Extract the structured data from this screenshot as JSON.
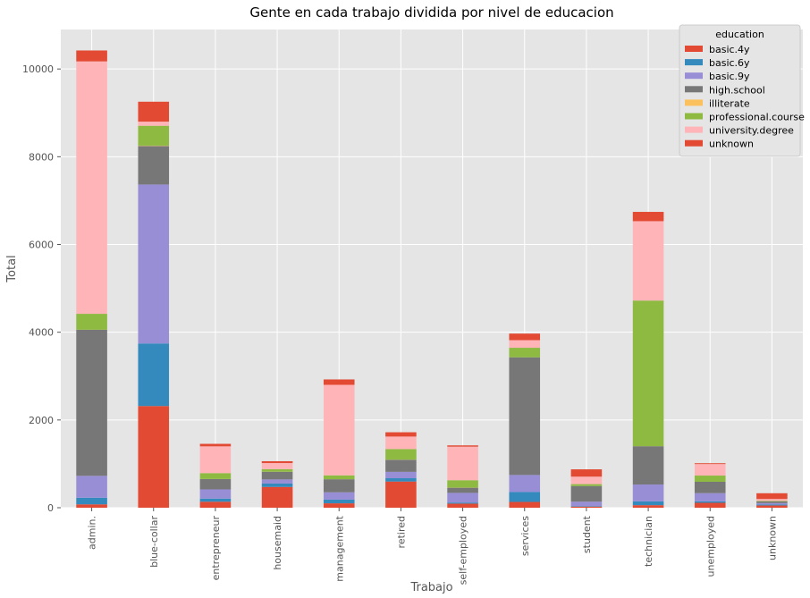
{
  "chart_data": {
    "type": "bar",
    "stacked": true,
    "title": "Gente en cada trabajo dividida por nivel de educacion",
    "xlabel": "Trabajo",
    "ylabel": "Total",
    "ylim": [
      0,
      10900
    ],
    "yticks": [
      0,
      2000,
      4000,
      6000,
      8000,
      10000
    ],
    "grid": true,
    "legend_title": "education",
    "legend_position": "top-right",
    "categories": [
      "admin.",
      "blue-collar",
      "entrepreneur",
      "housemaid",
      "management",
      "retired",
      "self-employed",
      "services",
      "student",
      "technician",
      "unemployed",
      "unknown"
    ],
    "series": [
      {
        "name": "basic.4y",
        "color": "#E24A33",
        "values": [
          77,
          2318,
          137,
          474,
          100,
          597,
          93,
          132,
          26,
          58,
          112,
          52
        ]
      },
      {
        "name": "basic.6y",
        "color": "#348ABD",
        "values": [
          151,
          1426,
          71,
          77,
          85,
          75,
          25,
          226,
          13,
          87,
          34,
          22
        ]
      },
      {
        "name": "basic.9y",
        "color": "#988ED5",
        "values": [
          499,
          3623,
          210,
          94,
          166,
          145,
          220,
          388,
          99,
          384,
          186,
          31
        ]
      },
      {
        "name": "high.school",
        "color": "#777777",
        "values": [
          3329,
          878,
          234,
          174,
          298,
          276,
          118,
          2682,
          357,
          873,
          259,
          37
        ]
      },
      {
        "name": "illiterate",
        "color": "#FBC15E",
        "values": [
          1,
          8,
          2,
          1,
          0,
          3,
          3,
          0,
          0,
          0,
          0,
          0
        ]
      },
      {
        "name": "professional.course",
        "color": "#8EBA42",
        "values": [
          363,
          453,
          135,
          59,
          89,
          241,
          168,
          218,
          43,
          3320,
          142,
          12
        ]
      },
      {
        "name": "university.degree",
        "color": "#FFB5B8",
        "values": [
          5753,
          94,
          610,
          139,
          2063,
          285,
          765,
          173,
          170,
          1809,
          262,
          45
        ]
      },
      {
        "name": "unknown",
        "color": "#E24A33",
        "values": [
          249,
          454,
          57,
          42,
          123,
          98,
          29,
          150,
          167,
          212,
          19,
          131
        ]
      }
    ]
  }
}
